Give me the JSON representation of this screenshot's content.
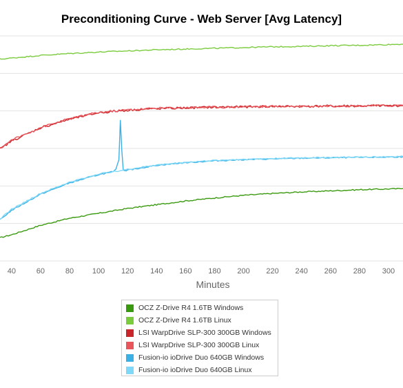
{
  "chart_data": {
    "type": "line",
    "title": "Preconditioning Curve - Web Server [Avg Latency]",
    "xlabel": "Minutes",
    "ylabel": "",
    "xlim": [
      32,
      310
    ],
    "ylim": [
      0,
      6
    ],
    "x_ticks": [
      40,
      60,
      80,
      100,
      120,
      140,
      160,
      180,
      200,
      220,
      240,
      260,
      280,
      300
    ],
    "grid": true,
    "legend_position": "bottom",
    "series": [
      {
        "name": "OCZ Z-Drive R4 1.6TB Windows",
        "color": "#3a9a0f",
        "x": [
          32,
          40,
          60,
          80,
          100,
          120,
          140,
          160,
          180,
          200,
          220,
          240,
          260,
          280,
          300,
          310
        ],
        "y": [
          0.62,
          0.7,
          0.95,
          1.14,
          1.27,
          1.4,
          1.5,
          1.6,
          1.68,
          1.75,
          1.8,
          1.84,
          1.87,
          1.9,
          1.92,
          1.93
        ]
      },
      {
        "name": "OCZ Z-Drive R4 1.6TB Linux",
        "color": "#7acb3d",
        "x": [
          32,
          40,
          60,
          80,
          100,
          120,
          140,
          160,
          180,
          200,
          220,
          240,
          260,
          280,
          300,
          310
        ],
        "y": [
          5.38,
          5.41,
          5.48,
          5.53,
          5.57,
          5.6,
          5.63,
          5.65,
          5.67,
          5.69,
          5.71,
          5.72,
          5.74,
          5.75,
          5.77,
          5.78
        ]
      },
      {
        "name": "LSI WarpDrive SLP-300 300GB Windows",
        "color": "#c8262a",
        "x": [
          32,
          40,
          60,
          80,
          100,
          120,
          140,
          160,
          180,
          200,
          220,
          240,
          260,
          280,
          300,
          310
        ],
        "y": [
          2.98,
          3.2,
          3.55,
          3.78,
          3.95,
          4.02,
          4.06,
          4.08,
          4.1,
          4.11,
          4.12,
          4.12,
          4.13,
          4.13,
          4.14,
          4.14
        ]
      },
      {
        "name": "LSI WarpDrive SLP-300 300GB Linux",
        "color": "#e8555a",
        "x": [
          32,
          40,
          60,
          80,
          100,
          120,
          140,
          160,
          180,
          200,
          220,
          240,
          260,
          280,
          300,
          310
        ],
        "y": [
          3.0,
          3.22,
          3.56,
          3.79,
          3.96,
          4.03,
          4.07,
          4.09,
          4.1,
          4.11,
          4.12,
          4.13,
          4.13,
          4.14,
          4.14,
          4.15
        ]
      },
      {
        "name": "Fusion-io ioDrive Duo 640GB Windows",
        "color": "#3bb0e4",
        "x": [
          32,
          40,
          60,
          80,
          100,
          110,
          112,
          114,
          115,
          116,
          117,
          119,
          120,
          140,
          160,
          180,
          200,
          220,
          240,
          260,
          280,
          300,
          310
        ],
        "y": [
          1.1,
          1.35,
          1.78,
          2.08,
          2.3,
          2.38,
          2.45,
          2.7,
          3.75,
          2.95,
          2.42,
          2.4,
          2.42,
          2.55,
          2.62,
          2.67,
          2.7,
          2.72,
          2.74,
          2.75,
          2.76,
          2.77,
          2.78
        ]
      },
      {
        "name": "Fusion-io ioDrive Duo 640GB Linux",
        "color": "#7fd8f8",
        "x": [
          32,
          40,
          60,
          80,
          100,
          120,
          140,
          160,
          180,
          200,
          220,
          240,
          260,
          280,
          300,
          310
        ],
        "y": [
          1.12,
          1.38,
          1.8,
          2.1,
          2.32,
          2.44,
          2.56,
          2.63,
          2.68,
          2.71,
          2.73,
          2.75,
          2.76,
          2.77,
          2.78,
          2.79
        ]
      }
    ]
  }
}
